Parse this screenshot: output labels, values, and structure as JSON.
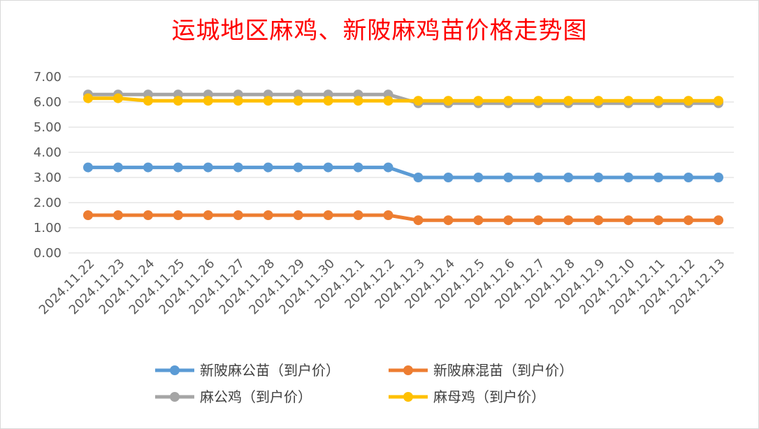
{
  "chart_data": {
    "type": "line",
    "title": "运城地区麻鸡、新陂麻鸡苗价格走势图",
    "xlabel": "",
    "ylabel": "",
    "ylim": [
      0,
      7
    ],
    "y_ticks": [
      "0.00",
      "1.00",
      "2.00",
      "3.00",
      "4.00",
      "5.00",
      "6.00",
      "7.00"
    ],
    "grid": "horizontal",
    "legend_position": "bottom",
    "categories": [
      "2024.11.22",
      "2024.11.23",
      "2024.11.24",
      "2024.11.25",
      "2024.11.26",
      "2024.11.27",
      "2024.11.28",
      "2024.11.29",
      "2024.11.30",
      "2024.12.1",
      "2024.12.2",
      "2024.12.3",
      "2024.12.4",
      "2024.12.5",
      "2024.12.6",
      "2024.12.7",
      "2024.12.8",
      "2024.12.9",
      "2024.12.10",
      "2024.12.11",
      "2024.12.12",
      "2024.12.13"
    ],
    "series": [
      {
        "name": "新陂麻公苗（到户价）",
        "color": "#5b9bd5",
        "values": [
          3.4,
          3.4,
          3.4,
          3.4,
          3.4,
          3.4,
          3.4,
          3.4,
          3.4,
          3.4,
          3.4,
          3.0,
          3.0,
          3.0,
          3.0,
          3.0,
          3.0,
          3.0,
          3.0,
          3.0,
          3.0,
          3.0
        ]
      },
      {
        "name": "新陂麻混苗（到户价）",
        "color": "#ed7d31",
        "values": [
          1.5,
          1.5,
          1.5,
          1.5,
          1.5,
          1.5,
          1.5,
          1.5,
          1.5,
          1.5,
          1.5,
          1.3,
          1.3,
          1.3,
          1.3,
          1.3,
          1.3,
          1.3,
          1.3,
          1.3,
          1.3,
          1.3
        ]
      },
      {
        "name": "麻公鸡（到户价）",
        "color": "#a5a5a5",
        "values": [
          6.3,
          6.3,
          6.3,
          6.3,
          6.3,
          6.3,
          6.3,
          6.3,
          6.3,
          6.3,
          6.3,
          5.95,
          5.95,
          5.95,
          5.95,
          5.95,
          5.95,
          5.95,
          5.95,
          5.95,
          5.95,
          5.95
        ]
      },
      {
        "name": "麻母鸡（到户价）",
        "color": "#ffc000",
        "values": [
          6.15,
          6.15,
          6.05,
          6.05,
          6.05,
          6.05,
          6.05,
          6.05,
          6.05,
          6.05,
          6.05,
          6.05,
          6.05,
          6.05,
          6.05,
          6.05,
          6.05,
          6.05,
          6.05,
          6.05,
          6.05,
          6.05
        ]
      }
    ]
  }
}
